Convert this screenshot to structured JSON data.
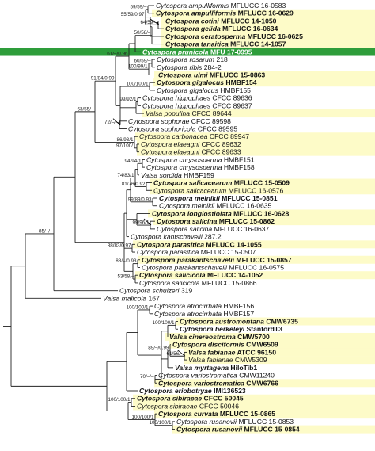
{
  "tree": {
    "colors": {
      "highlight": "#fdfbc8",
      "focus": "#2e9d3b",
      "branch": "#222222",
      "arrow": "#000000"
    },
    "taxa": [
      {
        "id": "t0",
        "name": "Cytospora ampulliformis MFLUCC 16-0583",
        "italic": "Cytospora ampulliformis",
        "code": " MFLUCC 16-0583",
        "bold": false,
        "hl": false
      },
      {
        "id": "t1",
        "name": "Cytospora ampulliformis MFLUCC 16-0629",
        "italic": "Cytospora ampulliformis",
        "code": " MFLUCC 16-0629",
        "bold": true,
        "hl": true
      },
      {
        "id": "t2",
        "name": "Cytospora cotini MFLUCC 14-1050",
        "italic": "Cytospora cotini",
        "code": " MFLUCC 14-1050",
        "bold": true,
        "hl": true
      },
      {
        "id": "t3",
        "name": "Cytospora gelida MFLUCC 16-0634",
        "italic": "Cytospora gelida",
        "code": " MFLUCC 16-0634",
        "bold": true,
        "hl": true
      },
      {
        "id": "t4",
        "name": "Cytospora ceratosperma MFLUCC 16-0625",
        "italic": "Cytospora ceratosperma",
        "code": " MFLUCC 16-0625",
        "bold": true,
        "hl": true
      },
      {
        "id": "t5",
        "name": "Cytospora tanaitica MFLUCC 14-1057",
        "italic": "Cytospora tanaitica",
        "code": " MFLUCC 14-1057",
        "bold": true,
        "hl": true
      },
      {
        "id": "t6",
        "name": "Cytospora prunicola MFU 17-0995",
        "italic": "Cytospora prunicola",
        "code": " MFU 17-0995",
        "bold": true,
        "hl": false,
        "focus": true
      },
      {
        "id": "t7",
        "name": "Cytospora rosarum 218",
        "italic": "Cytospora rosarum",
        "code": " 218",
        "bold": false,
        "hl": false
      },
      {
        "id": "t8",
        "name": "Cytospora ribis 284-2",
        "italic": "Cytospora ribis",
        "code": " 284-2",
        "bold": false,
        "hl": false
      },
      {
        "id": "t9",
        "name": "Cytospora ulmi MFLUCC 15-0863",
        "italic": "Cytospora ulmi",
        "code": " MFLUCC 15-0863",
        "bold": true,
        "hl": true
      },
      {
        "id": "t10",
        "name": "Cytospora gigalocus HMBF154",
        "italic": "Cytospora gigalocus",
        "code": " HMBF154",
        "bold": true,
        "hl": true
      },
      {
        "id": "t11",
        "name": "Cytospora gigalocus HMBF155",
        "italic": "Cytospora gigalocus",
        "code": " HMBF155",
        "bold": false,
        "hl": false
      },
      {
        "id": "t12",
        "name": "Cytospora hippophaes CFCC 89636",
        "italic": "Cytospora hippophaes",
        "code": " CFCC 89636",
        "bold": false,
        "hl": false
      },
      {
        "id": "t13",
        "name": "Cytospora hippophaes CFCC 89637",
        "italic": "Cytospora hippophaes",
        "code": " CFCC 89637",
        "bold": false,
        "hl": false
      },
      {
        "id": "t14",
        "name": "Valsa populina CFCC 89644",
        "italic": "Valsa populina",
        "code": " CFCC 89644",
        "bold": false,
        "hl": true
      },
      {
        "id": "t15",
        "name": "Cytospora sophorae CFCC 89598",
        "italic": "Cytospora sophorae",
        "code": " CFCC 89598",
        "bold": false,
        "hl": false
      },
      {
        "id": "t16",
        "name": "Cytospora sophoricola CFCC 89595",
        "italic": "Cytospora sophoricola",
        "code": " CFCC 89595",
        "bold": false,
        "hl": false
      },
      {
        "id": "t17",
        "name": "Cytospora carbonacea CFCC 89947",
        "italic": "Cytospora carbonacea",
        "code": " CFCC 89947",
        "bold": false,
        "hl": true
      },
      {
        "id": "t18",
        "name": "Cytospora elaeagni CFCC 89632",
        "italic": "Cytospora elaeagni",
        "code": " CFCC 89632",
        "bold": false,
        "hl": true
      },
      {
        "id": "t19",
        "name": "Cytospora elaeagni CFCC 89633",
        "italic": "Cytospora elaeagni",
        "code": " CFCC 89633",
        "bold": false,
        "hl": true
      },
      {
        "id": "t20",
        "name": "Cytospora chrysosperma HMBF151",
        "italic": "Cytospora chrysosperma",
        "code": " HMBF151",
        "bold": false,
        "hl": false
      },
      {
        "id": "t21",
        "name": "Cytospora chrysosperma HMBF158",
        "italic": "Cytospora chrysosperma",
        "code": " HMBF158",
        "bold": false,
        "hl": false
      },
      {
        "id": "t22",
        "name": "Valsa sordida HMBF159",
        "italic": "Valsa sordida",
        "code": " HMBF159",
        "bold": false,
        "hl": false
      },
      {
        "id": "t23",
        "name": "Cytospora salicacearum MFLUCC 15-0509",
        "italic": "Cytospora salicacearum",
        "code": " MFLUCC 15-0509",
        "bold": true,
        "hl": true
      },
      {
        "id": "t24",
        "name": "Cytospora salicacearum MFLUCC 16-0576",
        "italic": "Cytospora salicacearum",
        "code": " MFLUCC 16-0576",
        "bold": false,
        "hl": true
      },
      {
        "id": "t25",
        "name": "Cytospora melnikii MFLUCC 15-0851",
        "italic": "Cytospora melnikii",
        "code": " MFLUCC 15-0851",
        "bold": true,
        "hl": false
      },
      {
        "id": "t26",
        "name": "Cytospora melnikii MFLUCC 16-0635",
        "italic": "Cytospora melnikii",
        "code": " MFLUCC 16-0635",
        "bold": false,
        "hl": false
      },
      {
        "id": "t27",
        "name": "Cytospora longiostiolata MFLUCC 16-0628",
        "italic": "Cytospora longiostiolata",
        "code": " MFLUCC 16-0628",
        "bold": true,
        "hl": true
      },
      {
        "id": "t28",
        "name": "Cytospora salicina MFLUCC 15-0862",
        "italic": "Cytospora salicina",
        "code": " MFLUCC 15-0862",
        "bold": true,
        "hl": true
      },
      {
        "id": "t29",
        "name": "Cytospora salicina MFLUCC 16-0637",
        "italic": "Cytospora salicina",
        "code": " MFLUCC 16-0637",
        "bold": false,
        "hl": false
      },
      {
        "id": "t30",
        "name": "Cytospora kantschavelii 287.2",
        "italic": "Cytospora kantschavelii",
        "code": " 287.2",
        "bold": false,
        "hl": false
      },
      {
        "id": "t31",
        "name": "Cytospora parasitica MFLUCC 14-1055",
        "italic": "Cytospora parasitica",
        "code": " MFLUCC 14-1055",
        "bold": true,
        "hl": true
      },
      {
        "id": "t32",
        "name": "Cytospora parasitica MFLUCC 15-0507",
        "italic": "Cytospora parasitica",
        "code": " MFLUCC 15-0507",
        "bold": false,
        "hl": false
      },
      {
        "id": "t33",
        "name": "Cytospora parakantschavelii MFLUCC 15-0857",
        "italic": "Cytospora parakantschavelii",
        "code": " MFLUCC 15-0857",
        "bold": true,
        "hl": true
      },
      {
        "id": "t34",
        "name": "Cytospora parakantschavelii MFLUCC 16-0575",
        "italic": "Cytospora parakantschavelii",
        "code": " MFLUCC 16-0575",
        "bold": false,
        "hl": false
      },
      {
        "id": "t35",
        "name": "Cytospora salicicola MFLUCC 14-1052",
        "italic": "Cytospora salicicola",
        "code": " MFLUCC 14-1052",
        "bold": true,
        "hl": true
      },
      {
        "id": "t36",
        "name": "Cytospora salicicola MFLUCC 15-0866",
        "italic": "Cytospora salicicola",
        "code": " MFLUCC 15-0866",
        "bold": false,
        "hl": false
      },
      {
        "id": "t37",
        "name": "Cytospora schulzeri 319",
        "italic": "Cytospora schulzeri",
        "code": " 319",
        "bold": false,
        "hl": false
      },
      {
        "id": "t38",
        "name": "Valsa malicola 167",
        "italic": "Valsa malicola",
        "code": " 167",
        "bold": false,
        "hl": false
      },
      {
        "id": "t39",
        "name": "Cytospora atrocirrhata HMBF156",
        "italic": "Cytospora atrocirrhata",
        "code": " HMBF156",
        "bold": false,
        "hl": false
      },
      {
        "id": "t40",
        "name": "Cytospora atrocirrhata HMBF157",
        "italic": "Cytospora atrocirrhata",
        "code": " HMBF157",
        "bold": false,
        "hl": false
      },
      {
        "id": "t41",
        "name": "Cytospora austromontana CMW6735",
        "italic": "Cytospora austromontana",
        "code": " CMW6735",
        "bold": true,
        "hl": true
      },
      {
        "id": "t42",
        "name": "Cytospora berkeleyi StanfordT3",
        "italic": "Cytospora berkeleyi",
        "code": " StanfordT3",
        "bold": true,
        "hl": false
      },
      {
        "id": "t43",
        "name": "Valsa cinereostroma CMW5700",
        "italic": "Valsa cinereostroma",
        "code": " CMW5700",
        "bold": true,
        "hl": true
      },
      {
        "id": "t44",
        "name": "Cytospora disciformis CMW6509",
        "italic": "Cytospora disciformis",
        "code": " CMW6509",
        "bold": true,
        "hl": true
      },
      {
        "id": "t45",
        "name": "Valsa fabianae ATCC 96150",
        "italic": "Valsa fabianae",
        "code": " ATCC 96150",
        "bold": true,
        "hl": true
      },
      {
        "id": "t46",
        "name": "Valsa fabianae CMW5309",
        "italic": "Valsa fabianae",
        "code": " CMW5309",
        "bold": false,
        "hl": true
      },
      {
        "id": "t47",
        "name": "Valsa myrtagena HiloTib1",
        "italic": "Valsa myrtagena",
        "code": " HiloTib1",
        "bold": true,
        "hl": false
      },
      {
        "id": "t48",
        "name": "Cytospora variostromatica CMW11240",
        "italic": "Cytospora variostromatica",
        "code": " CMW11240",
        "bold": false,
        "hl": false
      },
      {
        "id": "t49",
        "name": "Cytospora variostromatica CMW6766",
        "italic": "Cytospora variostromatica",
        "code": " CMW6766",
        "bold": true,
        "hl": true
      },
      {
        "id": "t50",
        "name": "Cytospora eriobotryae IMI136523",
        "italic": "Cytospora eriobotryae",
        "code": " IMI136523",
        "bold": true,
        "hl": false
      },
      {
        "id": "t51",
        "name": "Cytospora sibiraeae CFCC 50045",
        "italic": "Cytospora sibiraeae",
        "code": " CFCC 50045",
        "bold": true,
        "hl": true
      },
      {
        "id": "t52",
        "name": "Cytospora sibiraeae CFCC 50046",
        "italic": "Cytospora sibiraeae",
        "code": " CFCC 50046",
        "bold": false,
        "hl": true
      },
      {
        "id": "t53",
        "name": "Cytospora curvata MFLUCC 15-0865",
        "italic": "Cytospora curvata",
        "code": " MFLUCC 15-0865",
        "bold": true,
        "hl": true
      },
      {
        "id": "t54",
        "name": "Cytospora rusanovii MFLUCC 15-0853",
        "italic": "Cytospora rusanovii",
        "code": " MFLUCC 15-0853",
        "bold": false,
        "hl": false
      },
      {
        "id": "t55",
        "name": "Cytospora rusanovii MFLUCC 15-0854",
        "italic": "Cytospora rusanovii",
        "code": " MFLUCC 15-0854",
        "bold": true,
        "hl": true
      }
    ],
    "nodes": [
      {
        "id": "n_ampul",
        "children": [
          "t0",
          "t1"
        ],
        "support": "59/59/–"
      },
      {
        "id": "n_cg",
        "children": [
          "t2",
          "t3"
        ],
        "support": "64/59/–"
      },
      {
        "id": "n_A",
        "children": [
          "n_ampul",
          "n_cg"
        ],
        "support": "55/59/0.97"
      },
      {
        "id": "n_B",
        "children": [
          "n_A",
          "t4"
        ],
        "support": ""
      },
      {
        "id": "n_C",
        "children": [
          "n_B",
          "t5"
        ],
        "support": "50/58/–"
      },
      {
        "id": "n_D",
        "children": [
          "n_C",
          "t6"
        ],
        "support": ""
      },
      {
        "id": "n_rr",
        "children": [
          "t7",
          "t8"
        ],
        "support": "60/59/–"
      },
      {
        "id": "n_E",
        "children": [
          "n_rr",
          "t9"
        ],
        "support": "100/99/1"
      },
      {
        "id": "n_F",
        "children": [
          "n_D",
          "n_E"
        ],
        "support": "61/–/0.96"
      },
      {
        "id": "n_gig",
        "children": [
          "t10",
          "t11"
        ],
        "support": "100/100/1"
      },
      {
        "id": "n_hip",
        "children": [
          "t12",
          "t13"
        ],
        "support": "99/92/1"
      },
      {
        "id": "n_G",
        "children": [
          "n_hip",
          "t14"
        ],
        "support": ""
      },
      {
        "id": "n_soph",
        "children": [
          "t15",
          "t16"
        ],
        "support": "72/–/–"
      },
      {
        "id": "n_H",
        "children": [
          "n_gig",
          "n_G",
          "n_soph"
        ],
        "support": ""
      },
      {
        "id": "n_I",
        "children": [
          "n_F",
          "n_H"
        ],
        "support": "91/84/0.99"
      },
      {
        "id": "n_ela",
        "children": [
          "t18",
          "t19"
        ],
        "support": "97/100/1"
      },
      {
        "id": "n_J",
        "children": [
          "t17",
          "n_ela"
        ],
        "support": "86/93/1"
      },
      {
        "id": "n_K",
        "children": [
          "n_I",
          "n_J"
        ],
        "support": "63/55/–"
      },
      {
        "id": "n_chry",
        "children": [
          "t20",
          "t21"
        ],
        "support": "94/94/1"
      },
      {
        "id": "n_L",
        "children": [
          "n_chry",
          "t22"
        ],
        "support": ""
      },
      {
        "id": "n_sal",
        "children": [
          "t23",
          "t24"
        ],
        "support": "81/76/0.92"
      },
      {
        "id": "n_M",
        "children": [
          "n_L",
          "n_sal"
        ],
        "support": "74/83/1"
      },
      {
        "id": "n_mel",
        "children": [
          "t25",
          "t26"
        ],
        "support": "99/89/0.93"
      },
      {
        "id": "n_N",
        "children": [
          "n_M",
          "n_mel"
        ],
        "support": ""
      },
      {
        "id": "n_salc",
        "children": [
          "t28",
          "t29"
        ],
        "support": "99/96/1"
      },
      {
        "id": "n_O",
        "children": [
          "t27",
          "n_salc"
        ],
        "support": ""
      },
      {
        "id": "n_P",
        "children": [
          "n_N",
          "n_O",
          "t30"
        ],
        "support": ""
      },
      {
        "id": "n_par",
        "children": [
          "t31",
          "t32"
        ],
        "support": "88/83/0.97"
      },
      {
        "id": "n_pk",
        "children": [
          "t33",
          "t34"
        ],
        "support": "88/–/0.93"
      },
      {
        "id": "n_sc",
        "children": [
          "t35",
          "t36"
        ],
        "support": "53/58/–"
      },
      {
        "id": "n_Q",
        "children": [
          "n_pk",
          "n_sc"
        ],
        "support": ""
      },
      {
        "id": "n_R",
        "children": [
          "n_P",
          "n_par",
          "n_Q"
        ],
        "support": ""
      },
      {
        "id": "n_S",
        "children": [
          "n_K",
          "n_R"
        ],
        "support": ""
      },
      {
        "id": "n_T",
        "children": [
          "n_S",
          "t37"
        ],
        "support": "85/–/–"
      },
      {
        "id": "n_U",
        "children": [
          "n_T",
          "t38"
        ],
        "support": ""
      },
      {
        "id": "n_atr",
        "children": [
          "t39",
          "t40"
        ],
        "support": "100/100/1"
      },
      {
        "id": "n_ab",
        "children": [
          "t41",
          "t42"
        ],
        "support": "100/100/1"
      },
      {
        "id": "n_V",
        "children": [
          "n_ab",
          "t43"
        ],
        "support": ""
      },
      {
        "id": "n_fab",
        "children": [
          "t45",
          "t46"
        ],
        "support": "61/56/–"
      },
      {
        "id": "n_W",
        "children": [
          "t44",
          "n_fab"
        ],
        "support": "89/–/0.99"
      },
      {
        "id": "n_X",
        "children": [
          "n_W",
          "t47"
        ],
        "support": ""
      },
      {
        "id": "n_var",
        "children": [
          "t48",
          "t49"
        ],
        "support": "70/–/–"
      },
      {
        "id": "n_Y",
        "children": [
          "n_V",
          "n_X",
          "n_var"
        ],
        "support": ""
      },
      {
        "id": "n_Z",
        "children": [
          "n_atr",
          "n_Y"
        ],
        "support": ""
      },
      {
        "id": "n_AA",
        "children": [
          "n_Z",
          "t50"
        ],
        "support": ""
      },
      {
        "id": "n_sib",
        "children": [
          "t51",
          "t52"
        ],
        "support": "100/100/1"
      },
      {
        "id": "n_rus",
        "children": [
          "t54",
          "t55"
        ],
        "support": "100/100/1"
      },
      {
        "id": "n_AB",
        "children": [
          "t53",
          "n_rus"
        ],
        "support": "100/100/1"
      },
      {
        "id": "n_AC",
        "children": [
          "n_sib",
          "n_AB"
        ],
        "support": ""
      },
      {
        "id": "n_AD",
        "children": [
          "n_AA",
          "n_AC"
        ],
        "support": ""
      },
      {
        "id": "n_root",
        "children": [
          "n_U",
          "n_AD"
        ],
        "support": ""
      }
    ],
    "root": "n_root"
  }
}
